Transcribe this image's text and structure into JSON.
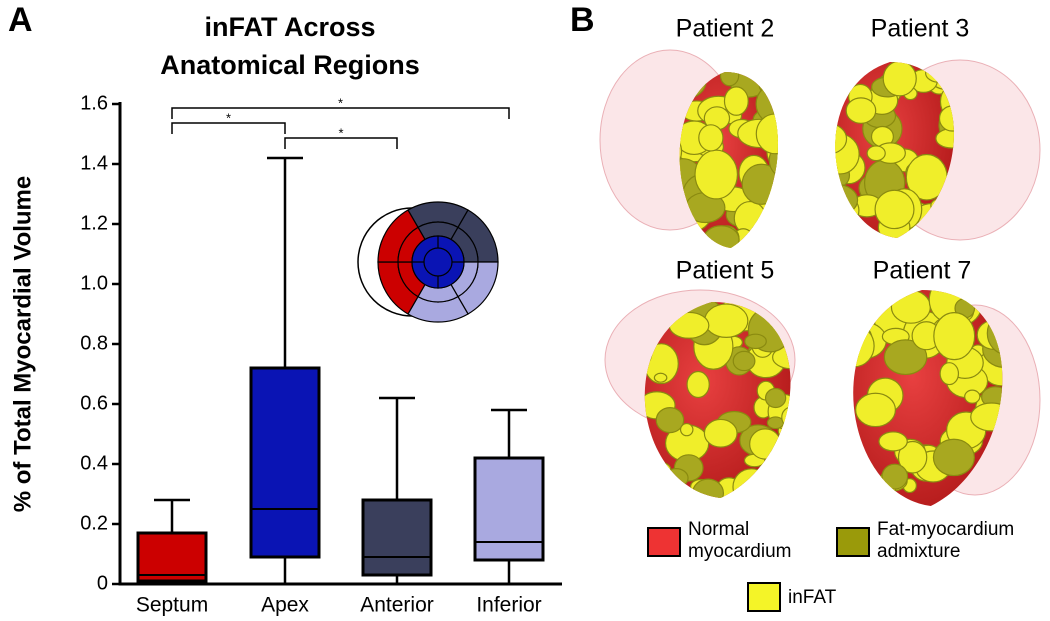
{
  "panel_labels": [
    "A",
    "B"
  ],
  "chart_data": {
    "type": "box",
    "title": "inFAT Across Anatomical Regions",
    "ylabel": "% of Total Myocardial Volume",
    "categories": [
      "Septum",
      "Apex",
      "Anterior",
      "Inferior"
    ],
    "colors": [
      "#cc0000",
      "#0a14b4",
      "#3a3f5c",
      "#a9a9e0"
    ],
    "boxes": [
      {
        "min": 0,
        "q1": 0.01,
        "median": 0.03,
        "q3": 0.17,
        "max": 0.28
      },
      {
        "min": 0,
        "q1": 0.09,
        "median": 0.25,
        "q3": 0.72,
        "max": 1.42
      },
      {
        "min": 0,
        "q1": 0.03,
        "median": 0.09,
        "q3": 0.28,
        "max": 0.62
      },
      {
        "min": 0,
        "q1": 0.08,
        "median": 0.14,
        "q3": 0.42,
        "max": 0.58
      }
    ],
    "ylim": [
      0,
      1.6
    ],
    "yticks": [
      0,
      0.2,
      0.4,
      0.6,
      0.8,
      {
        "value": 1,
        "label": "1.0"
      },
      1.2,
      1.4,
      1.6
    ],
    "significance": [
      {
        "pair": [
          0,
          3
        ],
        "label": "*"
      },
      {
        "pair": [
          0,
          1
        ],
        "label": "*"
      },
      {
        "pair": [
          1,
          2
        ],
        "label": "*"
      }
    ]
  },
  "panel_b": {
    "patients": [
      "Patient 2",
      "Patient 3",
      "Patient 5",
      "Patient 7"
    ],
    "legend": [
      {
        "lines": [
          "Normal",
          "myocardium"
        ],
        "color": "#ee3333"
      },
      {
        "lines": [
          "Fat-myocardium",
          "admixture"
        ],
        "color": "#9a9a0a"
      },
      {
        "lines": [
          "inFAT"
        ],
        "color": "#f4f428"
      }
    ]
  }
}
